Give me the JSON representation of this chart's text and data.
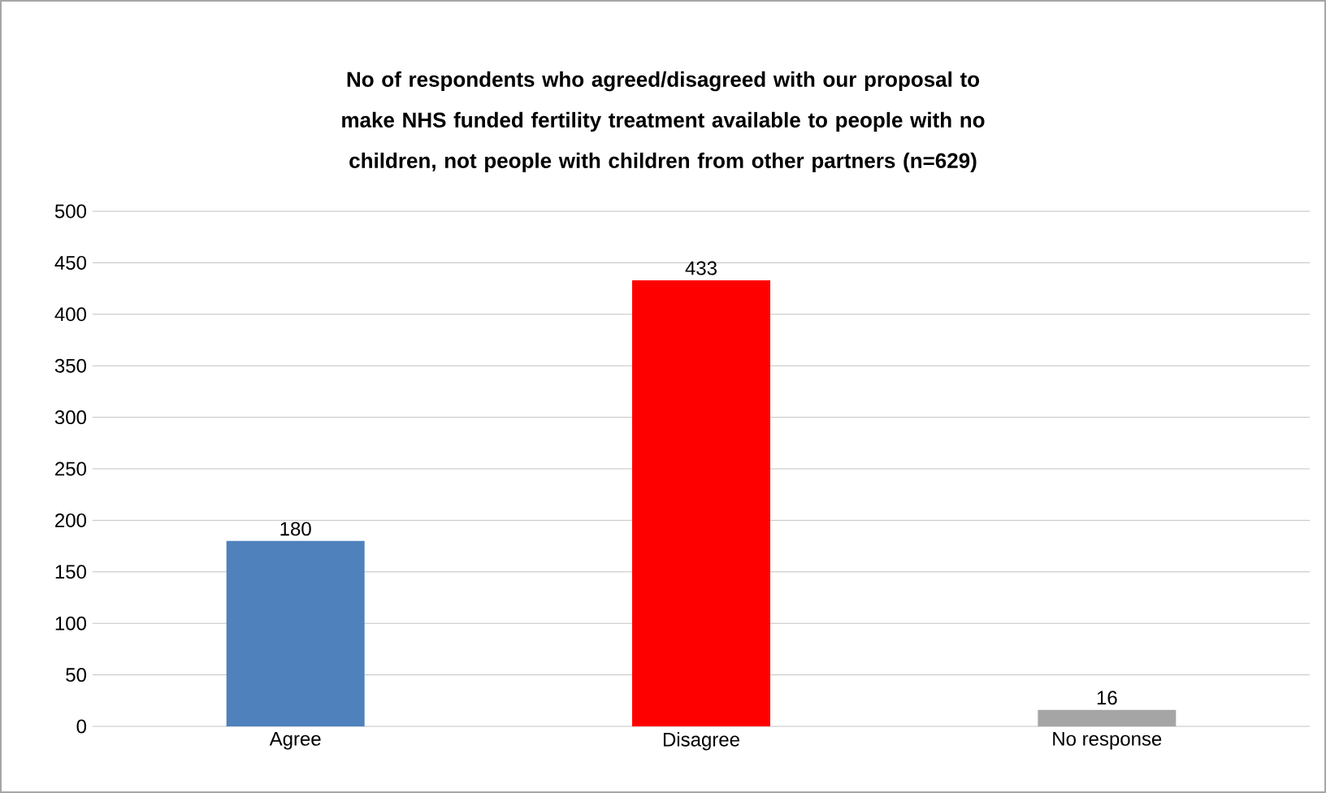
{
  "chart_data": {
    "type": "bar",
    "title": "No of respondents who agreed/disagreed with our proposal to make NHS funded fertility treatment available to people with no children, not people with children from other partners (n=629)",
    "categories": [
      "Agree",
      "Disagree",
      "No response"
    ],
    "values": [
      180,
      433,
      16
    ],
    "colors": [
      "#4f81bd",
      "#ff0000",
      "#a5a5a5"
    ],
    "ylim": [
      0,
      500
    ],
    "yticks": [
      0,
      50,
      100,
      150,
      200,
      250,
      300,
      350,
      400,
      450,
      500
    ],
    "grid": "y",
    "data_labels": true
  }
}
